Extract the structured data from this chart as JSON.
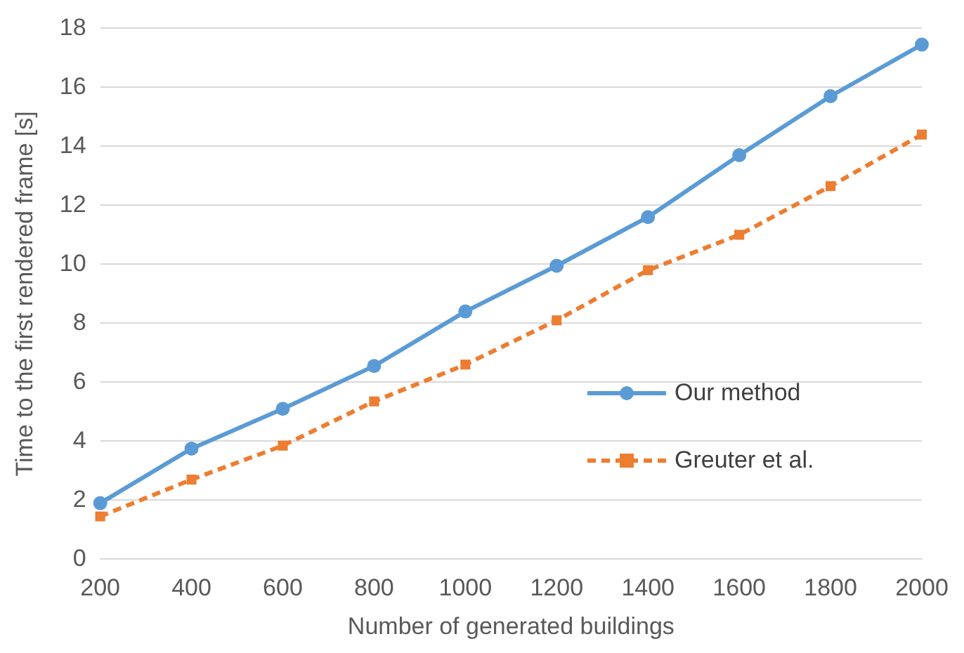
{
  "chart_data": {
    "type": "line",
    "xlabel": "Number of generated buildings",
    "ylabel": "Time to the first rendered frame [s]",
    "categories": [
      "200",
      "400",
      "600",
      "800",
      "1000",
      "1200",
      "1400",
      "1600",
      "1800",
      "2000"
    ],
    "series": [
      {
        "name": "Our method",
        "color": "#5b9bd5",
        "marker": "circle",
        "line_style": "solid",
        "values": [
          1.9,
          3.75,
          5.1,
          6.55,
          8.4,
          9.95,
          11.6,
          13.7,
          15.7,
          17.45
        ]
      },
      {
        "name": "Greuter et al.",
        "color": "#ed7d31",
        "marker": "square",
        "line_style": "dashed",
        "values": [
          1.45,
          2.7,
          3.85,
          5.35,
          6.6,
          8.1,
          9.8,
          11.0,
          12.65,
          14.4
        ]
      }
    ],
    "ylim": [
      0,
      18
    ],
    "yticks": [
      0,
      2,
      4,
      6,
      8,
      10,
      12,
      14,
      16,
      18
    ],
    "grid": "y",
    "legend": "right"
  }
}
